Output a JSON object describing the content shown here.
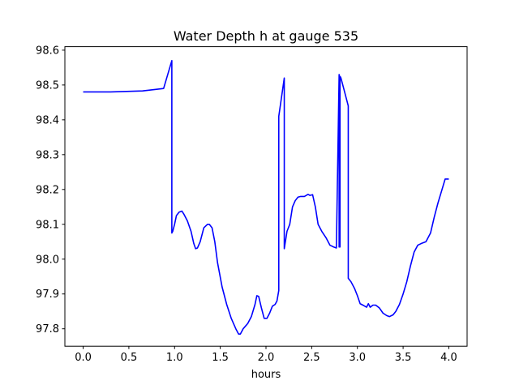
{
  "chart_data": {
    "type": "line",
    "title": "Water Depth h at gauge 535",
    "xlabel": "hours",
    "ylabel": "",
    "xlim": [
      -0.2,
      4.2
    ],
    "ylim": [
      97.75,
      98.61
    ],
    "grid": false,
    "x_ticks": [
      {
        "value": 0.0,
        "label": "0.0"
      },
      {
        "value": 0.5,
        "label": "0.5"
      },
      {
        "value": 1.0,
        "label": "1.0"
      },
      {
        "value": 1.5,
        "label": "1.5"
      },
      {
        "value": 2.0,
        "label": "2.0"
      },
      {
        "value": 2.5,
        "label": "2.5"
      },
      {
        "value": 3.0,
        "label": "3.0"
      },
      {
        "value": 3.5,
        "label": "3.5"
      },
      {
        "value": 4.0,
        "label": "4.0"
      }
    ],
    "y_ticks": [
      {
        "value": 97.8,
        "label": "97.8"
      },
      {
        "value": 97.9,
        "label": "97.9"
      },
      {
        "value": 98.0,
        "label": "98.0"
      },
      {
        "value": 98.1,
        "label": "98.1"
      },
      {
        "value": 98.2,
        "label": "98.2"
      },
      {
        "value": 98.3,
        "label": "98.3"
      },
      {
        "value": 98.4,
        "label": "98.4"
      },
      {
        "value": 98.5,
        "label": "98.5"
      },
      {
        "value": 98.6,
        "label": "98.6"
      }
    ],
    "series": [
      {
        "color": "#0000ff",
        "x": [
          0.0,
          0.3,
          0.65,
          0.88,
          0.97,
          0.97,
          0.98,
          1.0,
          1.02,
          1.05,
          1.08,
          1.1,
          1.14,
          1.18,
          1.21,
          1.23,
          1.25,
          1.28,
          1.32,
          1.36,
          1.38,
          1.41,
          1.44,
          1.47,
          1.52,
          1.57,
          1.62,
          1.67,
          1.7,
          1.72,
          1.75,
          1.8,
          1.84,
          1.88,
          1.9,
          1.92,
          1.95,
          1.98,
          2.01,
          2.04,
          2.07,
          2.1,
          2.12,
          2.14,
          2.14,
          2.2,
          2.2,
          2.2,
          2.23,
          2.26,
          2.29,
          2.32,
          2.35,
          2.38,
          2.42,
          2.46,
          2.48,
          2.51,
          2.54,
          2.57,
          2.61,
          2.66,
          2.7,
          2.74,
          2.77,
          2.8,
          2.8,
          2.8,
          2.81,
          2.81,
          2.81,
          2.81,
          2.82,
          2.86,
          2.9,
          2.9,
          2.93,
          2.97,
          3.0,
          3.03,
          3.06,
          3.1,
          3.12,
          3.14,
          3.17,
          3.2,
          3.24,
          3.28,
          3.32,
          3.35,
          3.39,
          3.42,
          3.46,
          3.5,
          3.54,
          3.58,
          3.62,
          3.66,
          3.7,
          3.75,
          3.8,
          3.84,
          3.88,
          3.92,
          3.96,
          4.0
        ],
        "y": [
          98.48,
          98.48,
          98.483,
          98.49,
          98.57,
          98.075,
          98.08,
          98.1,
          98.125,
          98.135,
          98.138,
          98.13,
          98.11,
          98.08,
          98.045,
          98.03,
          98.032,
          98.05,
          98.09,
          98.1,
          98.1,
          98.09,
          98.05,
          97.99,
          97.92,
          97.87,
          97.83,
          97.8,
          97.785,
          97.785,
          97.8,
          97.815,
          97.835,
          97.87,
          97.895,
          97.893,
          97.86,
          97.83,
          97.83,
          97.845,
          97.865,
          97.87,
          97.88,
          97.91,
          98.41,
          98.52,
          98.03,
          98.03,
          98.08,
          98.1,
          98.15,
          98.168,
          98.178,
          98.18,
          98.18,
          98.186,
          98.183,
          98.185,
          98.15,
          98.1,
          98.08,
          98.06,
          98.04,
          98.035,
          98.032,
          98.53,
          98.035,
          98.52,
          98.035,
          98.525,
          98.04,
          98.525,
          98.52,
          98.48,
          98.44,
          97.945,
          97.935,
          97.915,
          97.895,
          97.872,
          97.868,
          97.862,
          97.872,
          97.862,
          97.868,
          97.868,
          97.86,
          97.845,
          97.838,
          97.835,
          97.84,
          97.85,
          97.87,
          97.9,
          97.935,
          97.98,
          98.02,
          98.04,
          98.045,
          98.05,
          98.075,
          98.12,
          98.16,
          98.195,
          98.23,
          98.23
        ]
      }
    ]
  }
}
